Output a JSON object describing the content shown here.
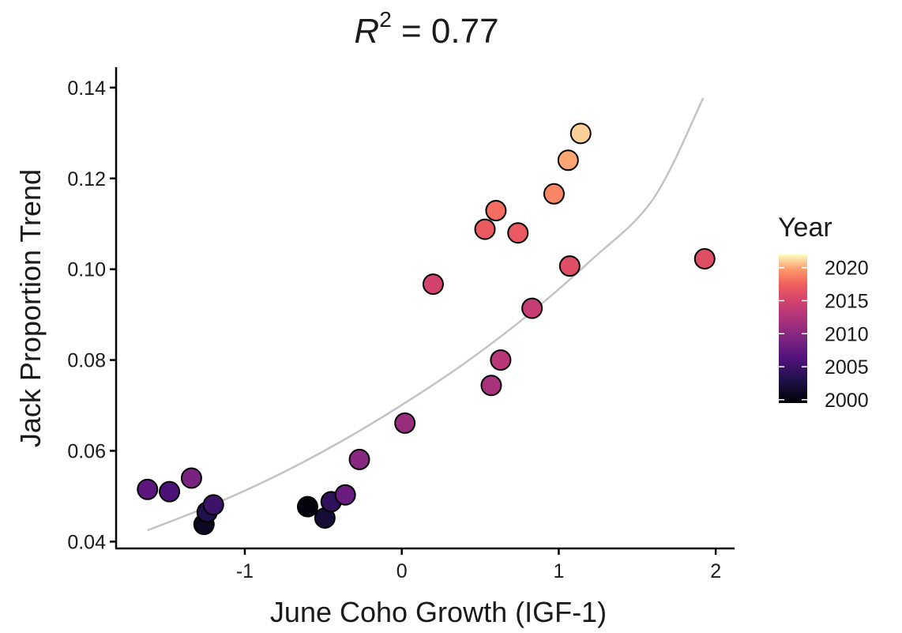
{
  "chart_data": {
    "type": "scatter",
    "title": {
      "prefix": "R",
      "superscript": "2",
      "suffix": " = 0.77"
    },
    "xlabel": "June Coho Growth (IGF-1)",
    "ylabel": "Jack Proportion Trend",
    "xlim": [
      -1.82,
      2.12
    ],
    "ylim": [
      0.0385,
      0.1445
    ],
    "x_ticks": [
      -1,
      0,
      1,
      2
    ],
    "x_tick_labels": [
      "-1",
      "0",
      "1",
      "2"
    ],
    "y_ticks": [
      0.04,
      0.06,
      0.08,
      0.1,
      0.12,
      0.14
    ],
    "y_tick_labels": [
      "0.04",
      "0.06",
      "0.08",
      "0.10",
      "0.12",
      "0.14"
    ],
    "grid": false,
    "legend": {
      "title": "Year",
      "placement": "right",
      "range": [
        1999.5,
        2022
      ],
      "ticks": [
        2000,
        2005,
        2010,
        2015,
        2020
      ],
      "tick_labels": [
        "2000",
        "2005",
        "2010",
        "2015",
        "2020"
      ]
    },
    "colormap": {
      "name": "magma",
      "stops": [
        [
          0.0,
          "#000004"
        ],
        [
          0.15,
          "#1d1147"
        ],
        [
          0.3,
          "#51127c"
        ],
        [
          0.45,
          "#832681"
        ],
        [
          0.6,
          "#b73779"
        ],
        [
          0.7,
          "#d6456c"
        ],
        [
          0.8,
          "#f1605d"
        ],
        [
          0.9,
          "#fd9a6a"
        ],
        [
          1.0,
          "#fcfdbf"
        ]
      ]
    },
    "trend_color": "#c3c3c3",
    "trend_line": {
      "x": [
        -1.62,
        -1.2,
        -0.8,
        -0.4,
        0.0,
        0.4,
        0.8,
        1.2,
        1.6,
        1.92
      ],
      "y": [
        0.0425,
        0.0482,
        0.0545,
        0.0618,
        0.0701,
        0.0793,
        0.0898,
        0.1018,
        0.1154,
        0.1377
      ]
    },
    "points": [
      {
        "x": -0.6,
        "y": 0.0477,
        "year": 2000
      },
      {
        "x": -1.26,
        "y": 0.0438,
        "year": 2001
      },
      {
        "x": -0.49,
        "y": 0.0452,
        "year": 2002
      },
      {
        "x": -1.24,
        "y": 0.0465,
        "year": 2003
      },
      {
        "x": -0.45,
        "y": 0.0488,
        "year": 2004
      },
      {
        "x": -1.2,
        "y": 0.0481,
        "year": 2005
      },
      {
        "x": -1.48,
        "y": 0.051,
        "year": 2006
      },
      {
        "x": -1.62,
        "y": 0.0515,
        "year": 2007
      },
      {
        "x": -0.36,
        "y": 0.0503,
        "year": 2008
      },
      {
        "x": -1.34,
        "y": 0.054,
        "year": 2009
      },
      {
        "x": -0.27,
        "y": 0.0581,
        "year": 2010
      },
      {
        "x": 0.02,
        "y": 0.0661,
        "year": 2011
      },
      {
        "x": 0.57,
        "y": 0.0744,
        "year": 2012
      },
      {
        "x": 0.63,
        "y": 0.08,
        "year": 2013
      },
      {
        "x": 0.83,
        "y": 0.0914,
        "year": 2014
      },
      {
        "x": 0.2,
        "y": 0.0967,
        "year": 2015
      },
      {
        "x": 1.93,
        "y": 0.1023,
        "year": 2016
      },
      {
        "x": 1.07,
        "y": 0.1007,
        "year": 2016
      },
      {
        "x": 0.53,
        "y": 0.1088,
        "year": 2017
      },
      {
        "x": 0.74,
        "y": 0.108,
        "year": 2017
      },
      {
        "x": 0.6,
        "y": 0.1129,
        "year": 2018
      },
      {
        "x": 0.97,
        "y": 0.1166,
        "year": 2019
      },
      {
        "x": 1.06,
        "y": 0.124,
        "year": 2020
      },
      {
        "x": 1.14,
        "y": 0.1299,
        "year": 2021
      }
    ]
  }
}
